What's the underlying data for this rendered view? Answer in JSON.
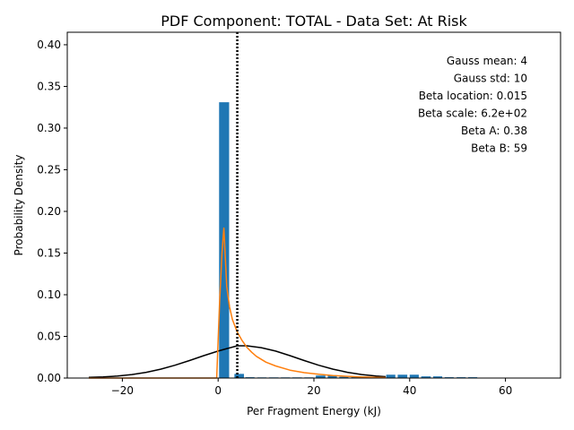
{
  "chart_data": {
    "type": "bar",
    "title": "PDF Component: TOTAL - Data Set: At Risk",
    "xlabel": "Per Fragment Energy (kJ)",
    "ylabel": "Probability Density",
    "xlim": [
      -31.5,
      71.5
    ],
    "ylim": [
      0,
      0.415
    ],
    "xticks": [
      -20,
      0,
      20,
      40,
      60
    ],
    "xtick_labels": [
      "−20",
      "0",
      "20",
      "40",
      "60"
    ],
    "yticks": [
      0.0,
      0.05,
      0.1,
      0.15,
      0.2,
      0.25,
      0.3,
      0.35,
      0.4
    ],
    "ytick_labels": [
      "0.00",
      "0.05",
      "0.10",
      "0.15",
      "0.20",
      "0.25",
      "0.30",
      "0.35",
      "0.40"
    ],
    "grid": false,
    "histogram": {
      "color": "#1f77b4",
      "bins": [
        {
          "x0": 0.2,
          "x1": 2.3,
          "value": 0.331
        },
        {
          "x0": 3.4,
          "x1": 5.4,
          "value": 0.005
        },
        {
          "x0": 5.7,
          "x1": 7.6,
          "value": 0.001
        },
        {
          "x0": 8.2,
          "x1": 10.1,
          "value": 0.0008
        },
        {
          "x0": 10.6,
          "x1": 12.6,
          "value": 0.0008
        },
        {
          "x0": 13.1,
          "x1": 15.0,
          "value": 0.0008
        },
        {
          "x0": 15.5,
          "x1": 17.5,
          "value": 0.0008
        },
        {
          "x0": 18.0,
          "x1": 19.9,
          "value": 0.0008
        },
        {
          "x0": 20.4,
          "x1": 22.4,
          "value": 0.003
        },
        {
          "x0": 22.9,
          "x1": 24.8,
          "value": 0.003
        },
        {
          "x0": 25.3,
          "x1": 27.2,
          "value": 0.0015
        },
        {
          "x0": 27.8,
          "x1": 29.7,
          "value": 0.0015
        },
        {
          "x0": 30.2,
          "x1": 32.1,
          "value": 0.0015
        },
        {
          "x0": 32.6,
          "x1": 34.6,
          "value": 0.0015
        },
        {
          "x0": 35.1,
          "x1": 37.0,
          "value": 0.004
        },
        {
          "x0": 37.5,
          "x1": 39.5,
          "value": 0.004
        },
        {
          "x0": 40.0,
          "x1": 41.9,
          "value": 0.004
        },
        {
          "x0": 42.4,
          "x1": 44.4,
          "value": 0.002
        },
        {
          "x0": 44.9,
          "x1": 46.8,
          "value": 0.002
        },
        {
          "x0": 47.3,
          "x1": 49.2,
          "value": 0.001
        },
        {
          "x0": 49.8,
          "x1": 51.7,
          "value": 0.001
        },
        {
          "x0": 52.2,
          "x1": 54.1,
          "value": 0.001
        }
      ]
    },
    "series": [
      {
        "color": "#000000",
        "x": [
          -27,
          -24,
          -21,
          -18,
          -15,
          -12,
          -9,
          -6,
          -3,
          0,
          2,
          4,
          6,
          9,
          12,
          15,
          18,
          21,
          24,
          27,
          30,
          33,
          35
        ],
        "y": [
          0.0007,
          0.0013,
          0.0024,
          0.0042,
          0.0069,
          0.0106,
          0.0154,
          0.021,
          0.0269,
          0.0324,
          0.0356,
          0.0387,
          0.0387,
          0.0365,
          0.0324,
          0.0269,
          0.021,
          0.0154,
          0.0106,
          0.0069,
          0.0042,
          0.0024,
          0.0016
        ]
      },
      {
        "color": "#ff7f0e",
        "x": [
          -27,
          -5,
          -0.3,
          0.3,
          0.8,
          1.2,
          1.8,
          2.4,
          3,
          4,
          5,
          6,
          7,
          8,
          10,
          12,
          15,
          18,
          21,
          24,
          27,
          30,
          33,
          35
        ],
        "y": [
          0.0,
          0.0,
          0.0,
          0.09,
          0.15,
          0.18,
          0.11,
          0.085,
          0.07,
          0.055,
          0.045,
          0.037,
          0.031,
          0.026,
          0.019,
          0.0145,
          0.0095,
          0.0065,
          0.0045,
          0.003,
          0.002,
          0.0013,
          0.0008,
          0.0005
        ]
      }
    ],
    "vline": {
      "x": 4,
      "color": "#000000",
      "style": "dotted"
    },
    "annotations": [
      "Gauss mean: 4",
      "Gauss std: 10",
      "Beta location: 0.015",
      "Beta scale: 6.2e+02",
      "Beta A: 0.38",
      "Beta B: 59"
    ],
    "annotation_placement": "top-right"
  }
}
